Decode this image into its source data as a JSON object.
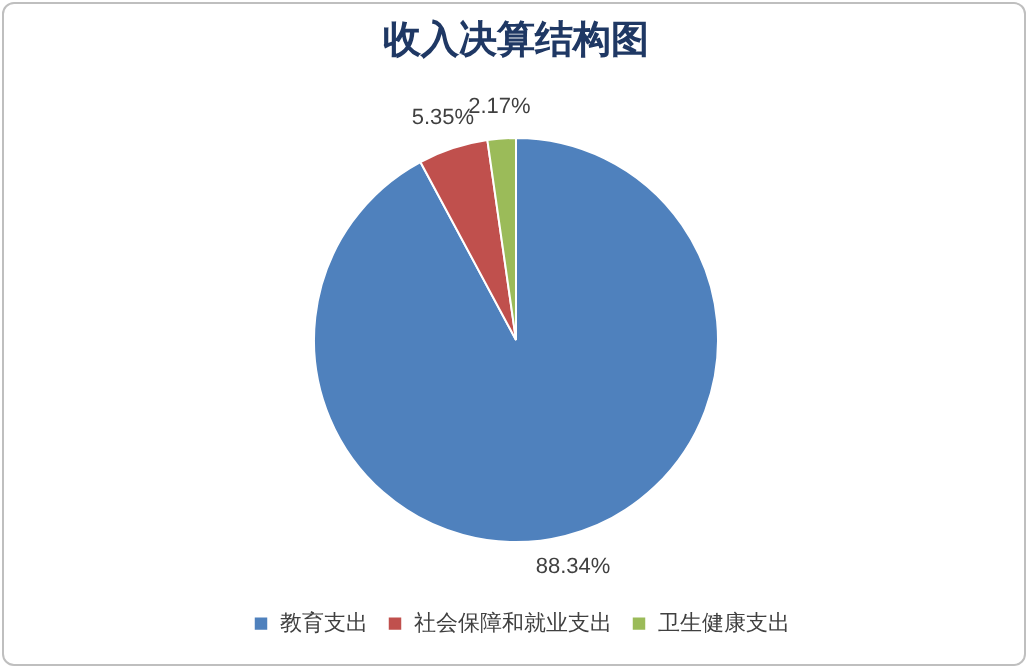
{
  "chart_data": {
    "type": "pie",
    "title": "收入决算结构图",
    "categories": [
      "教育支出",
      "社会保障和就业支出",
      "卫生健康支出"
    ],
    "values": [
      88.34,
      5.35,
      2.17
    ],
    "colors": [
      "#4f81bd",
      "#c0504d",
      "#9bbb59"
    ],
    "value_labels": [
      "88.34%",
      "5.35%",
      "2.17%"
    ],
    "legend": "bottom"
  }
}
